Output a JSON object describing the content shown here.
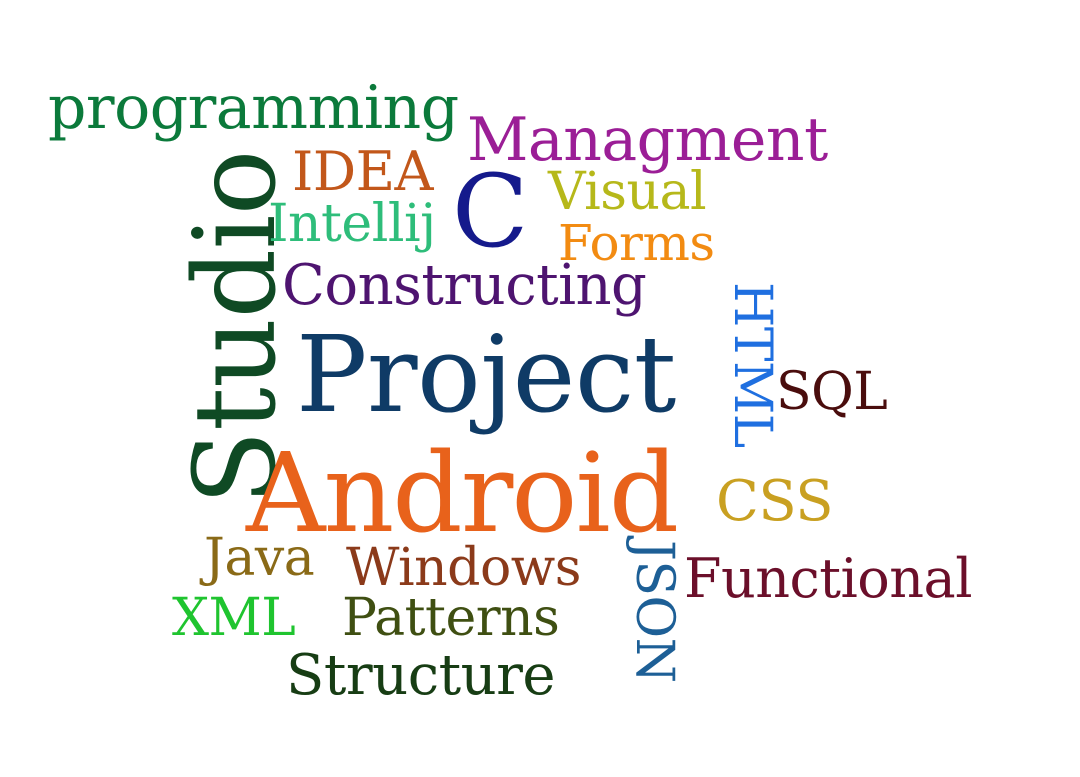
{
  "words": {
    "programming": {
      "text": "programming",
      "color": "#0b7a3b"
    },
    "studio": {
      "text": "Studio",
      "color": "#0f4a24"
    },
    "idea": {
      "text": "IDEA",
      "color": "#c2571a"
    },
    "managment": {
      "text": "Managment",
      "color": "#9b1e96"
    },
    "c": {
      "text": "C",
      "color": "#151a8c"
    },
    "visual": {
      "text": "Visual",
      "color": "#b6b81a"
    },
    "intellij": {
      "text": "Intellij",
      "color": "#2ebd7a"
    },
    "forms": {
      "text": "Forms",
      "color": "#f28b12"
    },
    "constructing": {
      "text": "Constructing",
      "color": "#4e1470"
    },
    "html": {
      "text": "HTML",
      "color": "#1f6fe0"
    },
    "project": {
      "text": "Project",
      "color": "#0f3b66"
    },
    "sql": {
      "text": "SQL",
      "color": "#4a0d0d"
    },
    "android": {
      "text": "Android",
      "color": "#e8621b"
    },
    "css": {
      "text": "CSS",
      "color": "#c9a021"
    },
    "java": {
      "text": "Java",
      "color": "#8a6a17"
    },
    "windows": {
      "text": "Windows",
      "color": "#8b3a1a"
    },
    "json": {
      "text": "JSON",
      "color": "#1d5f96"
    },
    "functional": {
      "text": "Functional",
      "color": "#6b0f2a"
    },
    "xml": {
      "text": "XML",
      "color": "#1fc42f"
    },
    "patterns": {
      "text": "Patterns",
      "color": "#3f4f12"
    },
    "structure": {
      "text": "Structure",
      "color": "#173d14"
    }
  }
}
